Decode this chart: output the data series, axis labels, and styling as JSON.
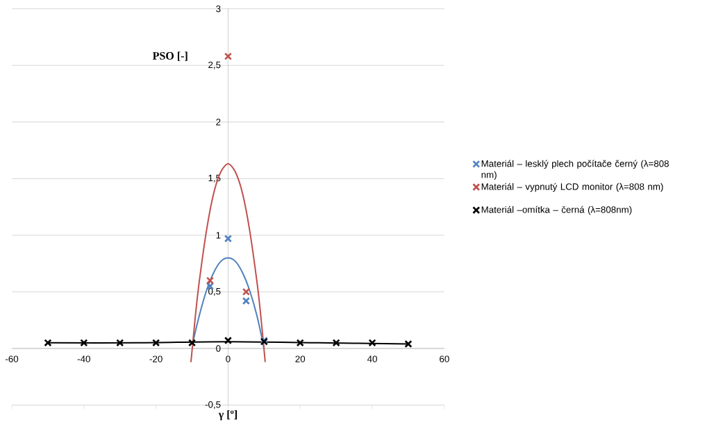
{
  "chart_data": {
    "type": "scatter",
    "xlabel": "γ [º]",
    "ylabel": "PSO [-]",
    "xlim": [
      -60,
      60
    ],
    "ylim": [
      -0.5,
      3
    ],
    "xticks": [
      -60,
      -40,
      -20,
      0,
      20,
      40,
      60
    ],
    "yticks": [
      {
        "value": -0.5,
        "label": "-0,5"
      },
      0,
      {
        "value": 0.5,
        "label": "0,5"
      },
      1,
      {
        "value": 1.5,
        "label": "1,5"
      },
      2,
      {
        "value": 2.5,
        "label": "2,5"
      },
      3
    ],
    "grid": "y",
    "legend": "right",
    "marker": "cross",
    "series": [
      {
        "name": "Materiál – lesklý plech počítače černý (λ=808 nm)",
        "color": "#4f81bd",
        "x": [
          -5,
          0,
          5,
          10
        ],
        "values": [
          0.55,
          0.97,
          0.42,
          0.07
        ]
      },
      {
        "name": "Materiál – vypnutý LCD monitor  (λ=808 nm)",
        "color": "#c0504d",
        "x": [
          -5,
          0,
          5
        ],
        "values": [
          0.6,
          2.58,
          0.5
        ]
      },
      {
        "name": "Materiál –omítka – černá (λ=808nm)",
        "color": "#000000",
        "x": [
          -50,
          -40,
          -30,
          -20,
          -10,
          0,
          10,
          20,
          30,
          40,
          50
        ],
        "values": [
          0.05,
          0.05,
          0.05,
          0.05,
          0.05,
          0.07,
          0.06,
          0.05,
          0.05,
          0.05,
          0.04
        ]
      },
      {
        "type": "line",
        "marker": "none",
        "color": "#4f81bd",
        "x": [
          -9.8,
          -8,
          -6,
          -4,
          -2,
          0,
          2,
          4,
          6,
          8,
          10
        ],
        "values": [
          0.05,
          0.29,
          0.51,
          0.67,
          0.77,
          0.8,
          0.77,
          0.67,
          0.51,
          0.29,
          0.0
        ]
      },
      {
        "type": "line",
        "marker": "none",
        "color": "#c0504d",
        "x": [
          -10.3,
          -9,
          -8,
          -6,
          -4,
          -2,
          0,
          2,
          4,
          6,
          8,
          9,
          10.3
        ],
        "values": [
          -0.12,
          0.31,
          0.59,
          1.04,
          1.37,
          1.56,
          1.63,
          1.56,
          1.37,
          1.04,
          0.59,
          0.31,
          -0.12
        ]
      },
      {
        "type": "line",
        "marker": "none",
        "color": "#000000",
        "x": [
          -50,
          -25,
          0,
          25,
          50
        ],
        "values": [
          0.05,
          0.05,
          0.06,
          0.05,
          0.04
        ]
      }
    ]
  }
}
